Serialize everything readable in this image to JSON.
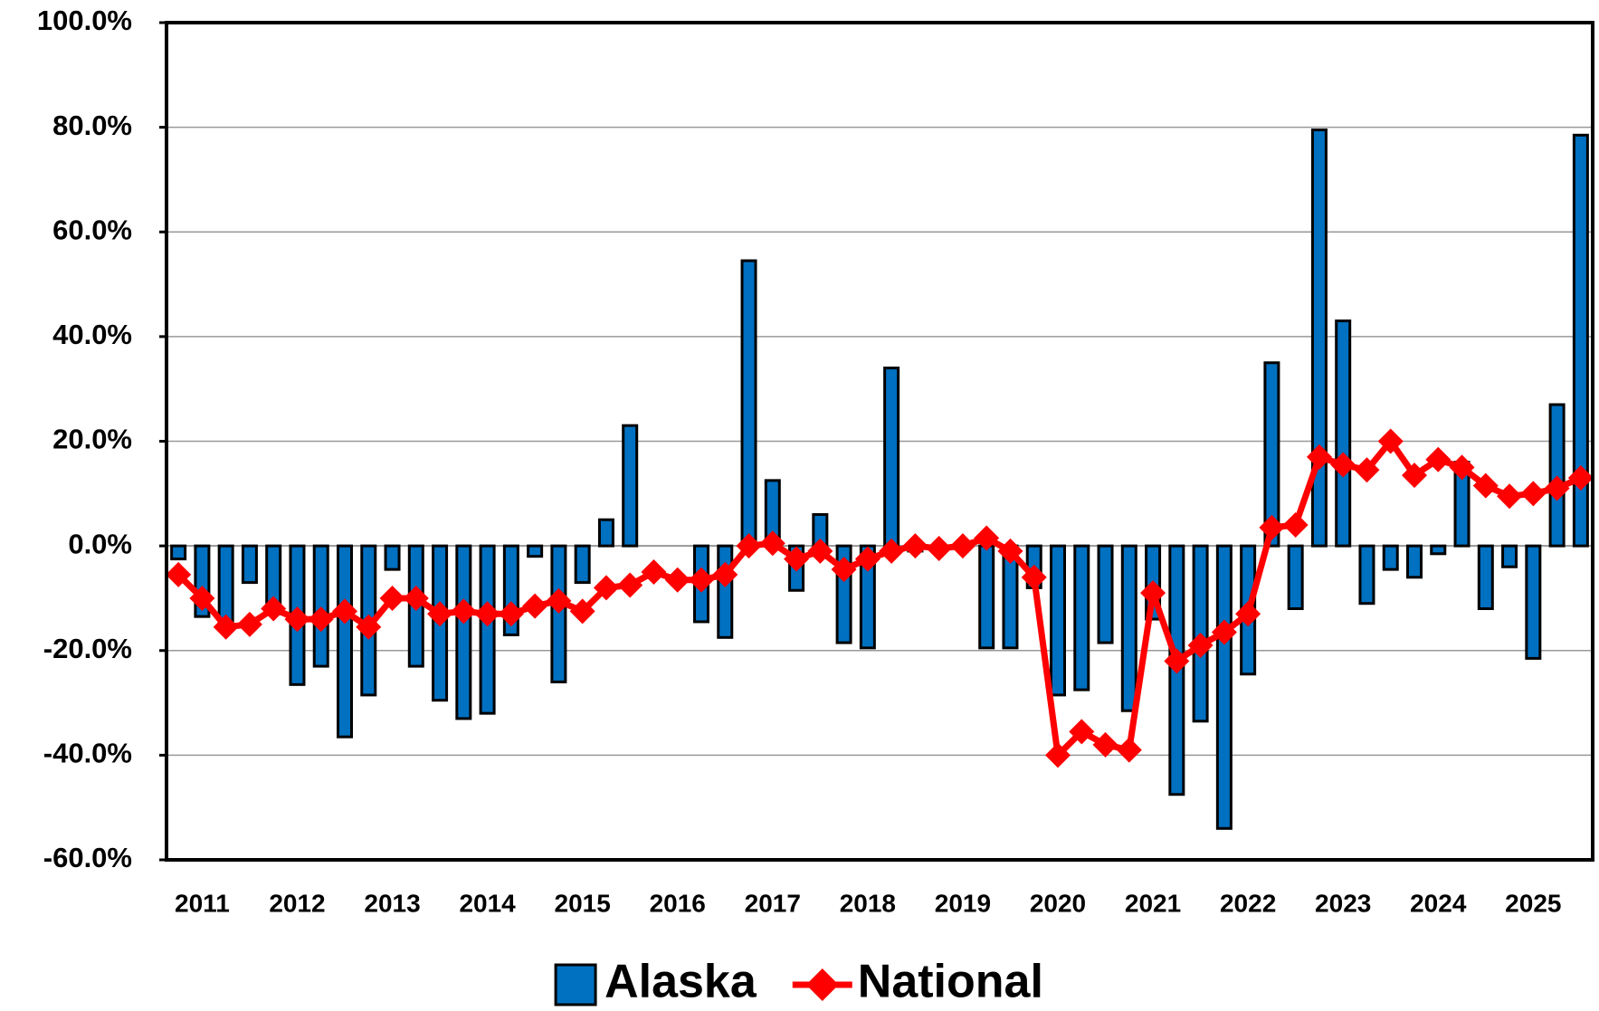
{
  "chart_data": {
    "type": "bar_line",
    "categories": [
      null,
      "2011",
      null,
      null,
      null,
      "2012",
      null,
      null,
      null,
      "2013",
      null,
      null,
      null,
      "2014",
      null,
      null,
      null,
      "2015",
      null,
      null,
      null,
      "2016",
      null,
      null,
      null,
      "2017",
      null,
      null,
      null,
      "2018",
      null,
      null,
      null,
      "2019",
      null,
      null,
      null,
      "2020",
      null,
      null,
      null,
      "2021",
      null,
      null,
      null,
      "2022",
      null,
      null,
      null,
      "2023",
      null,
      null,
      null,
      "2024",
      null,
      null,
      null,
      "2025",
      null,
      null
    ],
    "series": [
      {
        "name": "Alaska",
        "type": "bar",
        "color": "#0070c0",
        "values": [
          -2.5,
          -13.5,
          -15,
          -7,
          -13,
          -26.5,
          -23,
          -36.5,
          -28.5,
          -4.5,
          -23,
          -29.5,
          -33,
          -32,
          -17,
          -2,
          -26,
          -7,
          5,
          23,
          0,
          0,
          -14.5,
          -17.5,
          54.5,
          12.5,
          -8.5,
          6,
          -18.5,
          -19.5,
          34,
          -1,
          -1,
          0,
          -19.5,
          -19.5,
          -8,
          -28.5,
          -27.5,
          -18.5,
          -31.5,
          -14,
          -47.5,
          -33.5,
          -54,
          -24.5,
          35,
          -12,
          79.5,
          43,
          -11,
          -4.5,
          -6,
          -1.5,
          16,
          -12,
          -4,
          -21.5,
          27,
          78.5
        ]
      },
      {
        "name": "National",
        "type": "line",
        "color": "#ff0000",
        "values": [
          -5.5,
          -10,
          -15.5,
          -15,
          -12,
          -14,
          -14,
          -12.5,
          -15.5,
          -10,
          -10,
          -13,
          -12.5,
          -13,
          -13,
          -11.5,
          -10.5,
          -12.5,
          -8,
          -7.5,
          -5,
          -6.5,
          -6.5,
          -5.5,
          0,
          0.5,
          -2.5,
          -1,
          -4.5,
          -2.5,
          -1,
          0,
          -0.5,
          0,
          1.5,
          -1,
          -6,
          -40,
          -35.5,
          -38,
          -39,
          -9,
          -22,
          -19,
          -16.5,
          -13,
          3.5,
          4,
          17,
          15.5,
          14.5,
          20,
          13.5,
          16.5,
          15,
          11.5,
          9.5,
          10,
          11,
          13
        ]
      }
    ],
    "ylim": [
      -60,
      100
    ],
    "yticks": [
      {
        "value": -60,
        "label": "-60.0%"
      },
      {
        "value": -40,
        "label": "-40.0%"
      },
      {
        "value": -20,
        "label": "-20.0%"
      },
      {
        "value": 0,
        "label": "0.0%"
      },
      {
        "value": 20,
        "label": "20.0%"
      },
      {
        "value": 40,
        "label": "40.0%"
      },
      {
        "value": 60,
        "label": "60.0%"
      },
      {
        "value": 80,
        "label": "80.0%"
      },
      {
        "value": 100,
        "label": "100.0%"
      }
    ],
    "grid": true,
    "legend": "bottom"
  }
}
